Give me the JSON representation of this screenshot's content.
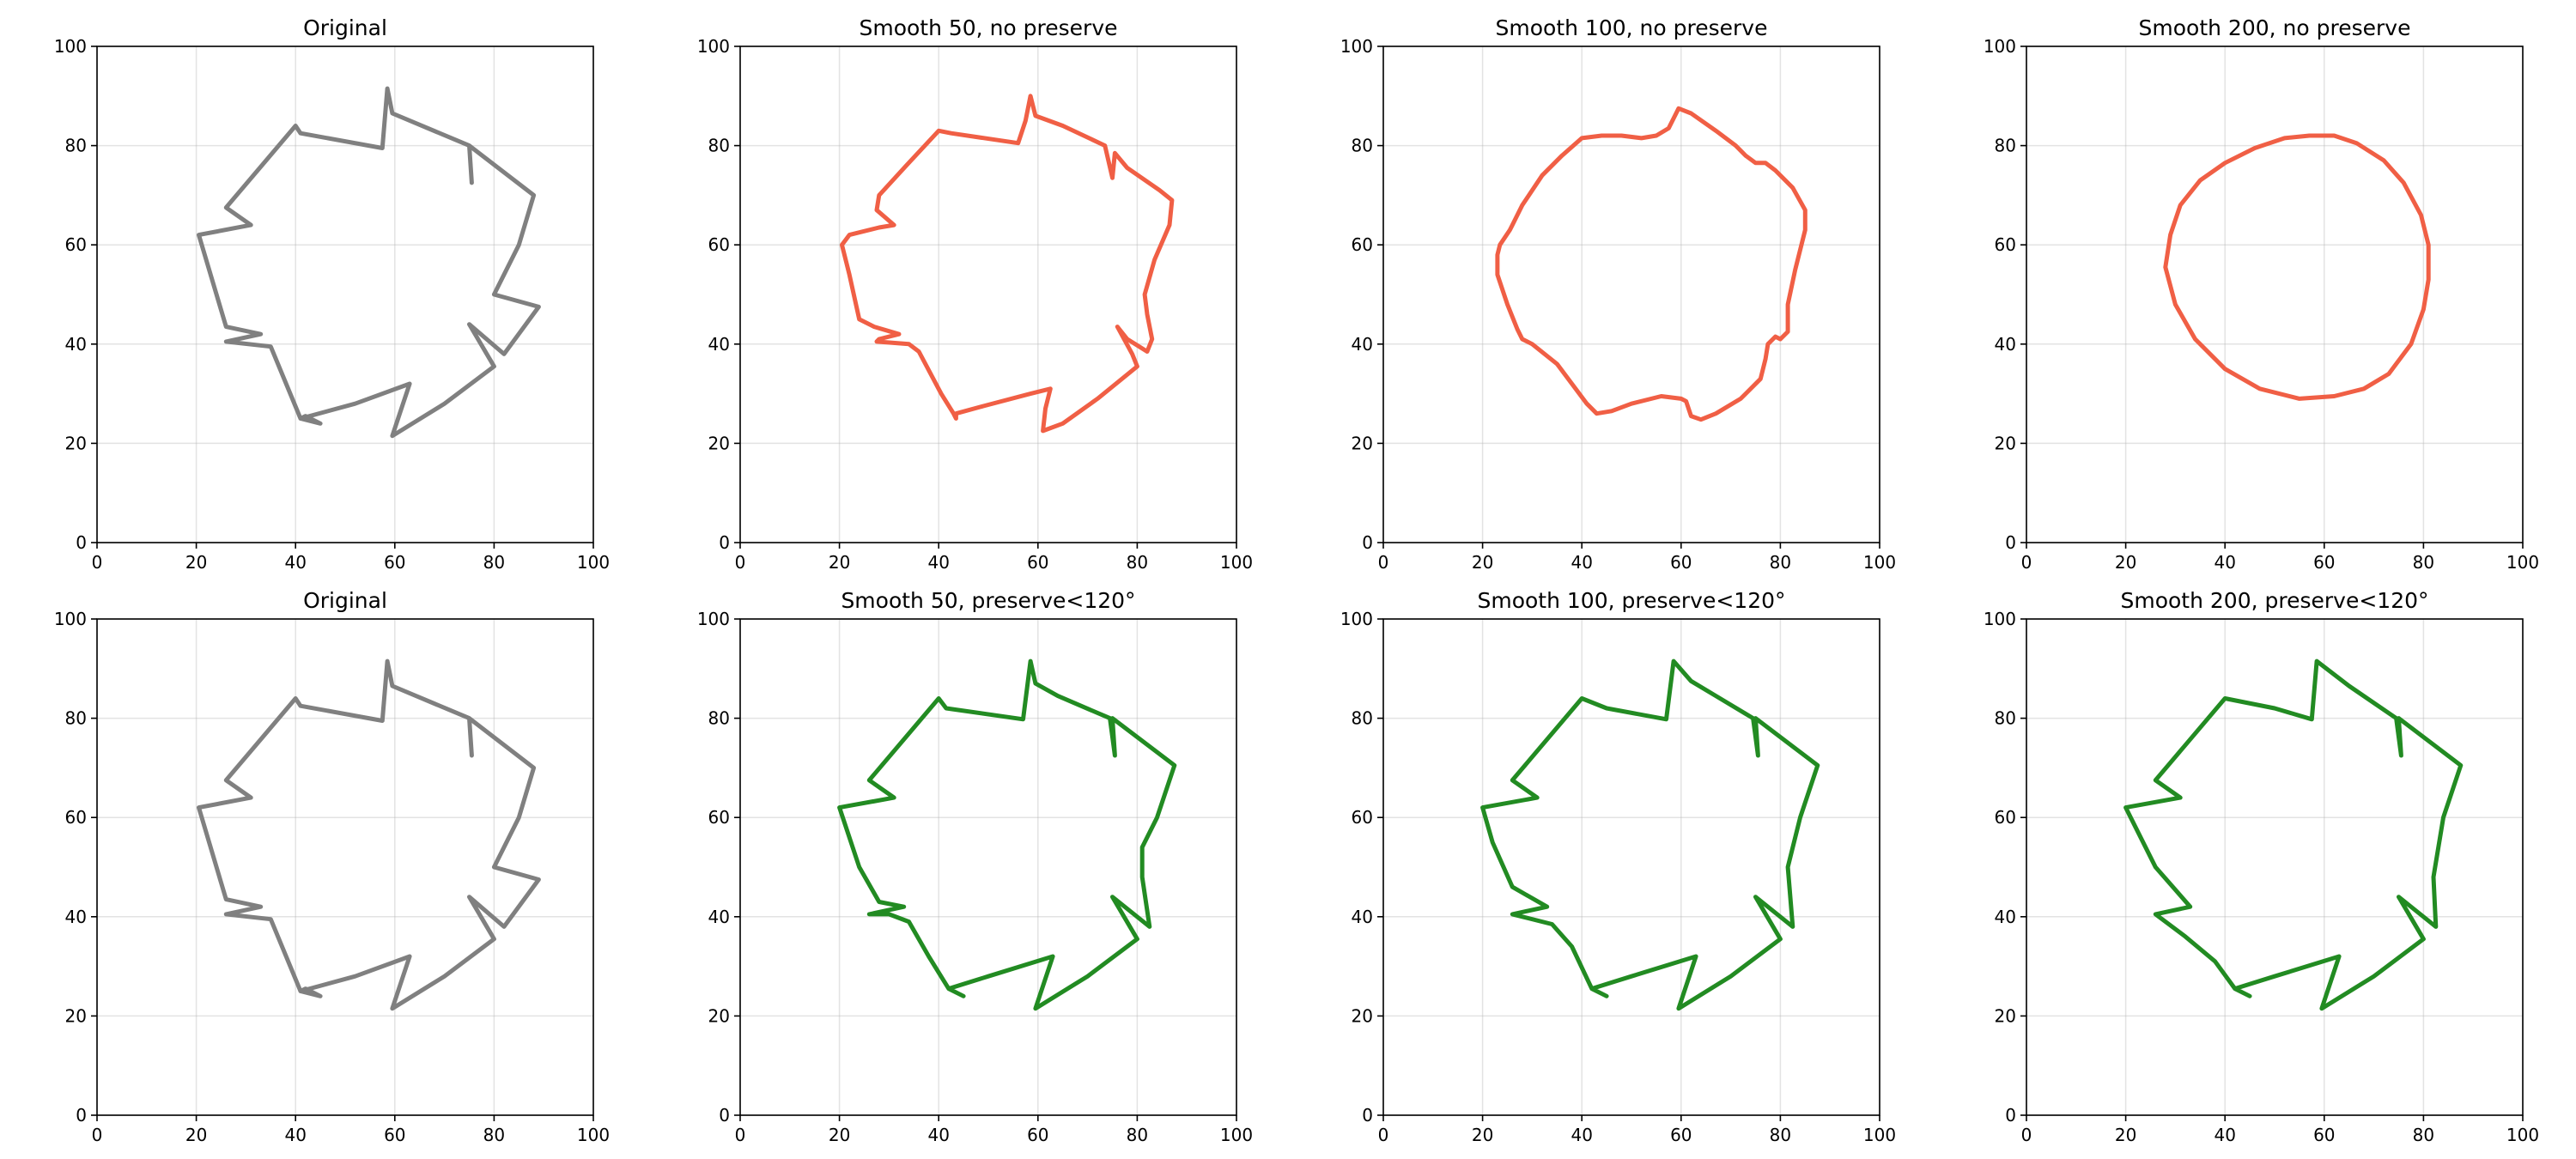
{
  "figure": {
    "background": "#ffffff"
  },
  "chart_data": [
    {
      "type": "line",
      "title": "Original",
      "xlim": [
        0,
        100
      ],
      "ylim": [
        0,
        100
      ],
      "xticks": [
        0,
        20,
        40,
        60,
        80,
        100
      ],
      "yticks": [
        0,
        20,
        40,
        60,
        80,
        100
      ],
      "grid": true,
      "color": "#808080",
      "closed": true,
      "points": [
        [
          40,
          84
        ],
        [
          41,
          82.5
        ],
        [
          57.5,
          79.5
        ],
        [
          58.5,
          91.5
        ],
        [
          59.5,
          86.5
        ],
        [
          75,
          80
        ],
        [
          75.5,
          72.5
        ],
        [
          75,
          80
        ],
        [
          88,
          70
        ],
        [
          85,
          60
        ],
        [
          80,
          50
        ],
        [
          89,
          47.5
        ],
        [
          82,
          38
        ],
        [
          75,
          44
        ],
        [
          80,
          35.5
        ],
        [
          70,
          28
        ],
        [
          59.5,
          21.5
        ],
        [
          63,
          32
        ],
        [
          52,
          28
        ],
        [
          41,
          25
        ],
        [
          45,
          24
        ],
        [
          42,
          25.5
        ],
        [
          41,
          25
        ],
        [
          35,
          39.5
        ],
        [
          26,
          40.5
        ],
        [
          33,
          42
        ],
        [
          26,
          43.5
        ],
        [
          20.5,
          62
        ],
        [
          31,
          64
        ],
        [
          26,
          67.5
        ],
        [
          40,
          84
        ]
      ]
    },
    {
      "type": "line",
      "title": "Smooth 50, no preserve",
      "xlim": [
        0,
        100
      ],
      "ylim": [
        0,
        100
      ],
      "xticks": [
        0,
        20,
        40,
        60,
        80,
        100
      ],
      "yticks": [
        0,
        20,
        40,
        60,
        80,
        100
      ],
      "grid": true,
      "color": "#f05f45",
      "closed": true,
      "points": [
        [
          40,
          83
        ],
        [
          42.5,
          82.5
        ],
        [
          56,
          80.5
        ],
        [
          57.5,
          85
        ],
        [
          58.5,
          90
        ],
        [
          59.5,
          86
        ],
        [
          65,
          84
        ],
        [
          73.5,
          80
        ],
        [
          75,
          73.5
        ],
        [
          75.5,
          78.5
        ],
        [
          78,
          75.5
        ],
        [
          84.5,
          71
        ],
        [
          87,
          69
        ],
        [
          86.5,
          64
        ],
        [
          83.5,
          57
        ],
        [
          81.5,
          50
        ],
        [
          82,
          46
        ],
        [
          83,
          41
        ],
        [
          82,
          38.5
        ],
        [
          78,
          41
        ],
        [
          76,
          43.5
        ],
        [
          79,
          38
        ],
        [
          80,
          35.5
        ],
        [
          72,
          29
        ],
        [
          65,
          24
        ],
        [
          61,
          22.5
        ],
        [
          61.5,
          27
        ],
        [
          62.5,
          31
        ],
        [
          58.5,
          30
        ],
        [
          49,
          27.5
        ],
        [
          43.5,
          26
        ],
        [
          43.5,
          25
        ],
        [
          43,
          26
        ],
        [
          40.5,
          30
        ],
        [
          36,
          38.5
        ],
        [
          34,
          40
        ],
        [
          27.5,
          40.5
        ],
        [
          28,
          41
        ],
        [
          32,
          42
        ],
        [
          27,
          43.5
        ],
        [
          24,
          45
        ],
        [
          22,
          54
        ],
        [
          20.5,
          60
        ],
        [
          22,
          62
        ],
        [
          28,
          63.5
        ],
        [
          31,
          64
        ],
        [
          27.5,
          67
        ],
        [
          28,
          70
        ],
        [
          33.5,
          76
        ],
        [
          40,
          83
        ]
      ]
    },
    {
      "type": "line",
      "title": "Smooth 100, no preserve",
      "xlim": [
        0,
        100
      ],
      "ylim": [
        0,
        100
      ],
      "xticks": [
        0,
        20,
        40,
        60,
        80,
        100
      ],
      "yticks": [
        0,
        20,
        40,
        60,
        80,
        100
      ],
      "grid": true,
      "color": "#f05f45",
      "closed": true,
      "points": [
        [
          40,
          81.5
        ],
        [
          44,
          82
        ],
        [
          48,
          82
        ],
        [
          52,
          81.5
        ],
        [
          55,
          82
        ],
        [
          57.5,
          83.5
        ],
        [
          59.5,
          87.5
        ],
        [
          62,
          86.5
        ],
        [
          67,
          83
        ],
        [
          71,
          80
        ],
        [
          73,
          78
        ],
        [
          75,
          76.5
        ],
        [
          77,
          76.5
        ],
        [
          79,
          75
        ],
        [
          82.5,
          71.5
        ],
        [
          85,
          67
        ],
        [
          85,
          63
        ],
        [
          83,
          55
        ],
        [
          81.5,
          48
        ],
        [
          81.5,
          42.5
        ],
        [
          80,
          41
        ],
        [
          79,
          41.5
        ],
        [
          77.5,
          40
        ],
        [
          77,
          37
        ],
        [
          76,
          33
        ],
        [
          72,
          29
        ],
        [
          67,
          26
        ],
        [
          64,
          24.8
        ],
        [
          62,
          25.5
        ],
        [
          61,
          28.5
        ],
        [
          60,
          29
        ],
        [
          56,
          29.5
        ],
        [
          50,
          28
        ],
        [
          46,
          26.5
        ],
        [
          43,
          26
        ],
        [
          41,
          28
        ],
        [
          38,
          32
        ],
        [
          35,
          36
        ],
        [
          30,
          40
        ],
        [
          28,
          41
        ],
        [
          27,
          43
        ],
        [
          25,
          48
        ],
        [
          23,
          54
        ],
        [
          23,
          58
        ],
        [
          23.5,
          60
        ],
        [
          25.5,
          63
        ],
        [
          26,
          64
        ],
        [
          28,
          68
        ],
        [
          32,
          74
        ],
        [
          36,
          78
        ],
        [
          40,
          81.5
        ]
      ]
    },
    {
      "type": "line",
      "title": "Smooth 200, no preserve",
      "xlim": [
        0,
        100
      ],
      "ylim": [
        0,
        100
      ],
      "xticks": [
        0,
        20,
        40,
        60,
        80,
        100
      ],
      "yticks": [
        0,
        20,
        40,
        60,
        80,
        100
      ],
      "grid": true,
      "color": "#f05f45",
      "closed": true,
      "points": [
        [
          57,
          82
        ],
        [
          52,
          81.5
        ],
        [
          46,
          79.5
        ],
        [
          40,
          76.5
        ],
        [
          35,
          73
        ],
        [
          31,
          68
        ],
        [
          29,
          62
        ],
        [
          28,
          55.5
        ],
        [
          30,
          48
        ],
        [
          34,
          41
        ],
        [
          40,
          35
        ],
        [
          47,
          31
        ],
        [
          55,
          29
        ],
        [
          62,
          29.5
        ],
        [
          68,
          31
        ],
        [
          73,
          34
        ],
        [
          77.5,
          40
        ],
        [
          80,
          47
        ],
        [
          81,
          53
        ],
        [
          81,
          60
        ],
        [
          79.5,
          66
        ],
        [
          76,
          72.5
        ],
        [
          72,
          77
        ],
        [
          66.5,
          80.5
        ],
        [
          62,
          82
        ],
        [
          57,
          82
        ]
      ]
    },
    {
      "type": "line",
      "title": "Original",
      "xlim": [
        0,
        100
      ],
      "ylim": [
        0,
        100
      ],
      "xticks": [
        0,
        20,
        40,
        60,
        80,
        100
      ],
      "yticks": [
        0,
        20,
        40,
        60,
        80,
        100
      ],
      "grid": true,
      "color": "#808080",
      "closed": true,
      "points": [
        [
          40,
          84
        ],
        [
          41,
          82.5
        ],
        [
          57.5,
          79.5
        ],
        [
          58.5,
          91.5
        ],
        [
          59.5,
          86.5
        ],
        [
          75,
          80
        ],
        [
          75.5,
          72.5
        ],
        [
          75,
          80
        ],
        [
          88,
          70
        ],
        [
          85,
          60
        ],
        [
          80,
          50
        ],
        [
          89,
          47.5
        ],
        [
          82,
          38
        ],
        [
          75,
          44
        ],
        [
          80,
          35.5
        ],
        [
          70,
          28
        ],
        [
          59.5,
          21.5
        ],
        [
          63,
          32
        ],
        [
          52,
          28
        ],
        [
          41,
          25
        ],
        [
          45,
          24
        ],
        [
          42,
          25.5
        ],
        [
          41,
          25
        ],
        [
          35,
          39.5
        ],
        [
          26,
          40.5
        ],
        [
          33,
          42
        ],
        [
          26,
          43.5
        ],
        [
          20.5,
          62
        ],
        [
          31,
          64
        ],
        [
          26,
          67.5
        ],
        [
          40,
          84
        ]
      ]
    },
    {
      "type": "line",
      "title": "Smooth 50, preserve<120°",
      "xlim": [
        0,
        100
      ],
      "ylim": [
        0,
        100
      ],
      "xticks": [
        0,
        20,
        40,
        60,
        80,
        100
      ],
      "yticks": [
        0,
        20,
        40,
        60,
        80,
        100
      ],
      "grid": true,
      "color": "#228b22",
      "closed": true,
      "points": [
        [
          40,
          84
        ],
        [
          41.5,
          82
        ],
        [
          57,
          79.8
        ],
        [
          58.5,
          91.5
        ],
        [
          59.5,
          87
        ],
        [
          64,
          84.5
        ],
        [
          74.5,
          80
        ],
        [
          75.5,
          72.5
        ],
        [
          75,
          80
        ],
        [
          87.5,
          70.5
        ],
        [
          84,
          60
        ],
        [
          81,
          54
        ],
        [
          81,
          48
        ],
        [
          82.5,
          38
        ],
        [
          75,
          44
        ],
        [
          80,
          35.5
        ],
        [
          70,
          28
        ],
        [
          59.5,
          21.5
        ],
        [
          63,
          32
        ],
        [
          50,
          28
        ],
        [
          42,
          25.5
        ],
        [
          45,
          24
        ],
        [
          42,
          25.5
        ],
        [
          38,
          32
        ],
        [
          34,
          39
        ],
        [
          30,
          40.5
        ],
        [
          26,
          40.5
        ],
        [
          33,
          42
        ],
        [
          28,
          43
        ],
        [
          24,
          50
        ],
        [
          20,
          62
        ],
        [
          31,
          64
        ],
        [
          26,
          67.5
        ],
        [
          40,
          84
        ]
      ]
    },
    {
      "type": "line",
      "title": "Smooth 100, preserve<120°",
      "xlim": [
        0,
        100
      ],
      "ylim": [
        0,
        100
      ],
      "xticks": [
        0,
        20,
        40,
        60,
        80,
        100
      ],
      "yticks": [
        0,
        20,
        40,
        60,
        80,
        100
      ],
      "grid": true,
      "color": "#228b22",
      "closed": true,
      "points": [
        [
          40,
          84
        ],
        [
          45,
          82
        ],
        [
          57,
          79.8
        ],
        [
          58.5,
          91.5
        ],
        [
          62,
          87.5
        ],
        [
          67,
          84.5
        ],
        [
          74.5,
          80
        ],
        [
          75.5,
          72.5
        ],
        [
          75,
          80
        ],
        [
          87.5,
          70.5
        ],
        [
          84,
          60
        ],
        [
          81.5,
          50
        ],
        [
          82.5,
          38
        ],
        [
          75,
          44
        ],
        [
          80,
          35.5
        ],
        [
          70,
          28
        ],
        [
          59.5,
          21.5
        ],
        [
          63,
          32
        ],
        [
          50,
          28
        ],
        [
          42,
          25.5
        ],
        [
          45,
          24
        ],
        [
          42,
          25.5
        ],
        [
          38,
          34
        ],
        [
          34,
          38.5
        ],
        [
          26,
          40.5
        ],
        [
          33,
          42
        ],
        [
          26,
          46
        ],
        [
          22,
          55
        ],
        [
          20,
          62
        ],
        [
          31,
          64
        ],
        [
          26,
          67.5
        ],
        [
          40,
          84
        ]
      ]
    },
    {
      "type": "line",
      "title": "Smooth 200, preserve<120°",
      "xlim": [
        0,
        100
      ],
      "ylim": [
        0,
        100
      ],
      "xticks": [
        0,
        20,
        40,
        60,
        80,
        100
      ],
      "yticks": [
        0,
        20,
        40,
        60,
        80,
        100
      ],
      "grid": true,
      "color": "#228b22",
      "closed": true,
      "points": [
        [
          40,
          84
        ],
        [
          50,
          82
        ],
        [
          57.5,
          79.8
        ],
        [
          58.5,
          91.5
        ],
        [
          65,
          86.5
        ],
        [
          74.5,
          80
        ],
        [
          75.5,
          72.5
        ],
        [
          75,
          80
        ],
        [
          87.5,
          70.5
        ],
        [
          84,
          60
        ],
        [
          82,
          48
        ],
        [
          82.5,
          38
        ],
        [
          75,
          44
        ],
        [
          80,
          35.5
        ],
        [
          70,
          28
        ],
        [
          59.5,
          21.5
        ],
        [
          63,
          32
        ],
        [
          50,
          28
        ],
        [
          42,
          25.5
        ],
        [
          45,
          24
        ],
        [
          42,
          25.5
        ],
        [
          38,
          31
        ],
        [
          32,
          36
        ],
        [
          26,
          40.5
        ],
        [
          33,
          42
        ],
        [
          26,
          50
        ],
        [
          20,
          62
        ],
        [
          31,
          64
        ],
        [
          26,
          67.5
        ],
        [
          40,
          84
        ]
      ]
    }
  ]
}
